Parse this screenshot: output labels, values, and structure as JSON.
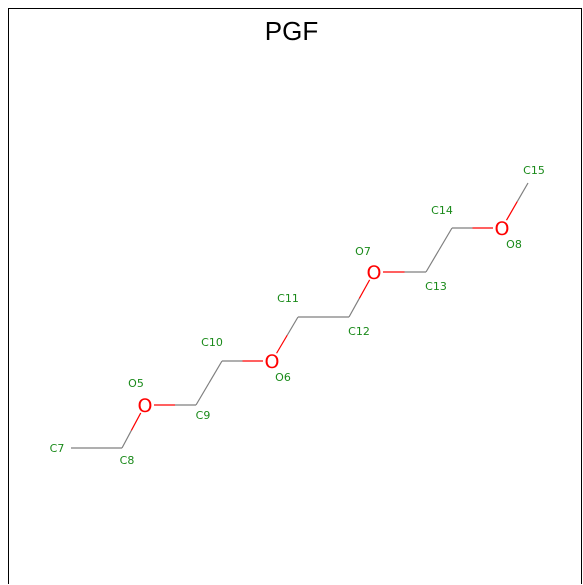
{
  "title": "PGF",
  "colors": {
    "label": "#1a8a1a",
    "oxygen": "#ff0000",
    "bond": "#7f7f7f"
  },
  "atoms": [
    {
      "id": "C7",
      "label": "C7",
      "symbol": ""
    },
    {
      "id": "C8",
      "label": "C8",
      "symbol": ""
    },
    {
      "id": "O5",
      "label": "O5",
      "symbol": "O"
    },
    {
      "id": "C9",
      "label": "C9",
      "symbol": ""
    },
    {
      "id": "C10",
      "label": "C10",
      "symbol": ""
    },
    {
      "id": "O6",
      "label": "O6",
      "symbol": "O"
    },
    {
      "id": "C11",
      "label": "C11",
      "symbol": ""
    },
    {
      "id": "C12",
      "label": "C12",
      "symbol": ""
    },
    {
      "id": "O7",
      "label": "O7",
      "symbol": "O"
    },
    {
      "id": "C13",
      "label": "C13",
      "symbol": ""
    },
    {
      "id": "C14",
      "label": "C14",
      "symbol": ""
    },
    {
      "id": "O8",
      "label": "O8",
      "symbol": "O"
    },
    {
      "id": "C15",
      "label": "C15",
      "symbol": ""
    }
  ],
  "bonds": [
    [
      "C7",
      "C8"
    ],
    [
      "C8",
      "O5"
    ],
    [
      "O5",
      "C9"
    ],
    [
      "C9",
      "C10"
    ],
    [
      "C10",
      "O6"
    ],
    [
      "O6",
      "C11"
    ],
    [
      "C11",
      "C12"
    ],
    [
      "C12",
      "O7"
    ],
    [
      "O7",
      "C13"
    ],
    [
      "C13",
      "C14"
    ],
    [
      "C14",
      "O8"
    ],
    [
      "O8",
      "C15"
    ]
  ]
}
